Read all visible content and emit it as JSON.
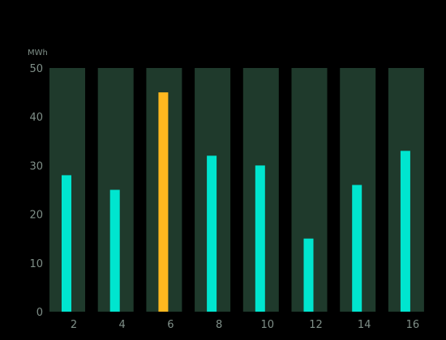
{
  "chart_data": {
    "type": "bar",
    "ylabel": "MWh",
    "categories": [
      "2",
      "4",
      "6",
      "8",
      "10",
      "12",
      "14",
      "16"
    ],
    "values": [
      28,
      25,
      45,
      32,
      30,
      15,
      26,
      33
    ],
    "ylim": [
      0,
      50
    ],
    "yticks": [
      0,
      10,
      20,
      30,
      40,
      50
    ],
    "highlight_index": 2,
    "grid": false,
    "colors": {
      "background": "#000000",
      "column_band": "#1f3a2c",
      "bar": "#00e5cf",
      "highlight": "#ffb81f",
      "tick_text": "#7f8f88"
    }
  }
}
